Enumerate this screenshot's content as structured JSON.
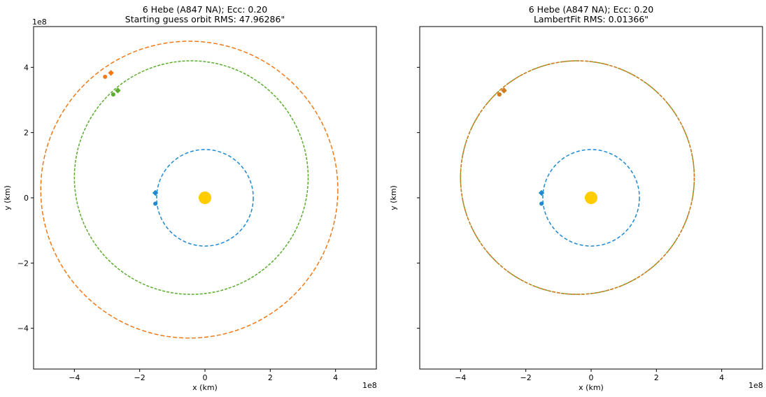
{
  "colors": {
    "earth": "#1f8ad0",
    "start_orbit": "#ef7a1a",
    "true_orbit": "#5aad2e",
    "fit_orbit": "#d4791e",
    "sun": "#ffcc00"
  },
  "chart_data": [
    {
      "type": "scatter",
      "title": "6 Hebe (A847 NA); Ecc: 0.20",
      "subtitle": "Starting guess orbit RMS: 47.96286\"",
      "xlabel": "x (km)",
      "ylabel": "y (km)",
      "axis_multiplier": "1e8",
      "xlim": [
        -5.25,
        5.25
      ],
      "ylim": [
        -5.25,
        5.25
      ],
      "xticks": [
        -4,
        -2,
        0,
        2,
        4
      ],
      "yticks": [
        -4,
        -2,
        0,
        2,
        4
      ],
      "xtick_labels": [
        "−4",
        "−2",
        "0",
        "2",
        "4"
      ],
      "ytick_labels": [
        "−4",
        "−2",
        "0",
        "2",
        "4"
      ],
      "grid": false,
      "series": [
        {
          "kind": "orbit",
          "color_key": "earth",
          "a": 1.48,
          "e": 0.0,
          "x0": 0.0,
          "y0": 0.0,
          "dash": "5,3",
          "markers": [
            {
              "x": -1.52,
              "y": 0.15,
              "shape": "diamond"
            },
            {
              "x": -1.52,
              "y": -0.18,
              "shape": "circle"
            }
          ]
        },
        {
          "kind": "orbit",
          "color_key": "start_orbit",
          "a": 4.55,
          "e": 0.0,
          "x0": -0.48,
          "y0": 0.25,
          "dash": "6,3",
          "markers": [
            {
              "x": -2.88,
              "y": 3.83,
              "shape": "diamond"
            },
            {
              "x": -3.06,
              "y": 3.71,
              "shape": "circle"
            }
          ]
        },
        {
          "kind": "orbit",
          "color_key": "true_orbit",
          "a": 3.58,
          "e": 0.0,
          "x0": -0.42,
          "y0": 0.62,
          "dash": "4,2",
          "markers": [
            {
              "x": -2.67,
              "y": 3.29,
              "shape": "diamond"
            },
            {
              "x": -2.81,
              "y": 3.17,
              "shape": "circle"
            }
          ]
        }
      ],
      "sun": {
        "x": 0.0,
        "y": 0.0
      }
    },
    {
      "type": "scatter",
      "title": "6 Hebe (A847 NA); Ecc: 0.20",
      "subtitle": "LambertFit RMS: 0.01366\"",
      "xlabel": "x (km)",
      "ylabel": "y (km)",
      "axis_multiplier": "1e8",
      "xlim": [
        -5.25,
        5.25
      ],
      "ylim": [
        -5.25,
        5.25
      ],
      "xticks": [
        -4,
        -2,
        0,
        2,
        4
      ],
      "yticks": [
        -4,
        -2,
        0,
        2,
        4
      ],
      "xtick_labels": [
        "−4",
        "−2",
        "0",
        "2",
        "4"
      ],
      "ytick_labels": [],
      "grid": false,
      "series": [
        {
          "kind": "orbit",
          "color_key": "earth",
          "a": 1.48,
          "e": 0.0,
          "x0": 0.0,
          "y0": 0.0,
          "dash": "5,3",
          "markers": [
            {
              "x": -1.52,
              "y": 0.15,
              "shape": "diamond"
            },
            {
              "x": -1.52,
              "y": -0.18,
              "shape": "circle"
            }
          ]
        },
        {
          "kind": "orbit",
          "color_key": "true_orbit",
          "a": 3.58,
          "e": 0.0,
          "x0": -0.42,
          "y0": 0.62,
          "dash": "4,2",
          "markers": [
            {
              "x": -2.67,
              "y": 3.29,
              "shape": "diamond"
            },
            {
              "x": -2.81,
              "y": 3.17,
              "shape": "circle"
            }
          ]
        },
        {
          "kind": "orbit",
          "color_key": "fit_orbit",
          "a": 3.58,
          "e": 0.0,
          "x0": -0.42,
          "y0": 0.62,
          "dash": "5,2",
          "markers": [
            {
              "x": -2.67,
              "y": 3.29,
              "shape": "diamond"
            },
            {
              "x": -2.81,
              "y": 3.17,
              "shape": "circle"
            }
          ]
        }
      ],
      "sun": {
        "x": 0.0,
        "y": 0.0
      }
    }
  ]
}
